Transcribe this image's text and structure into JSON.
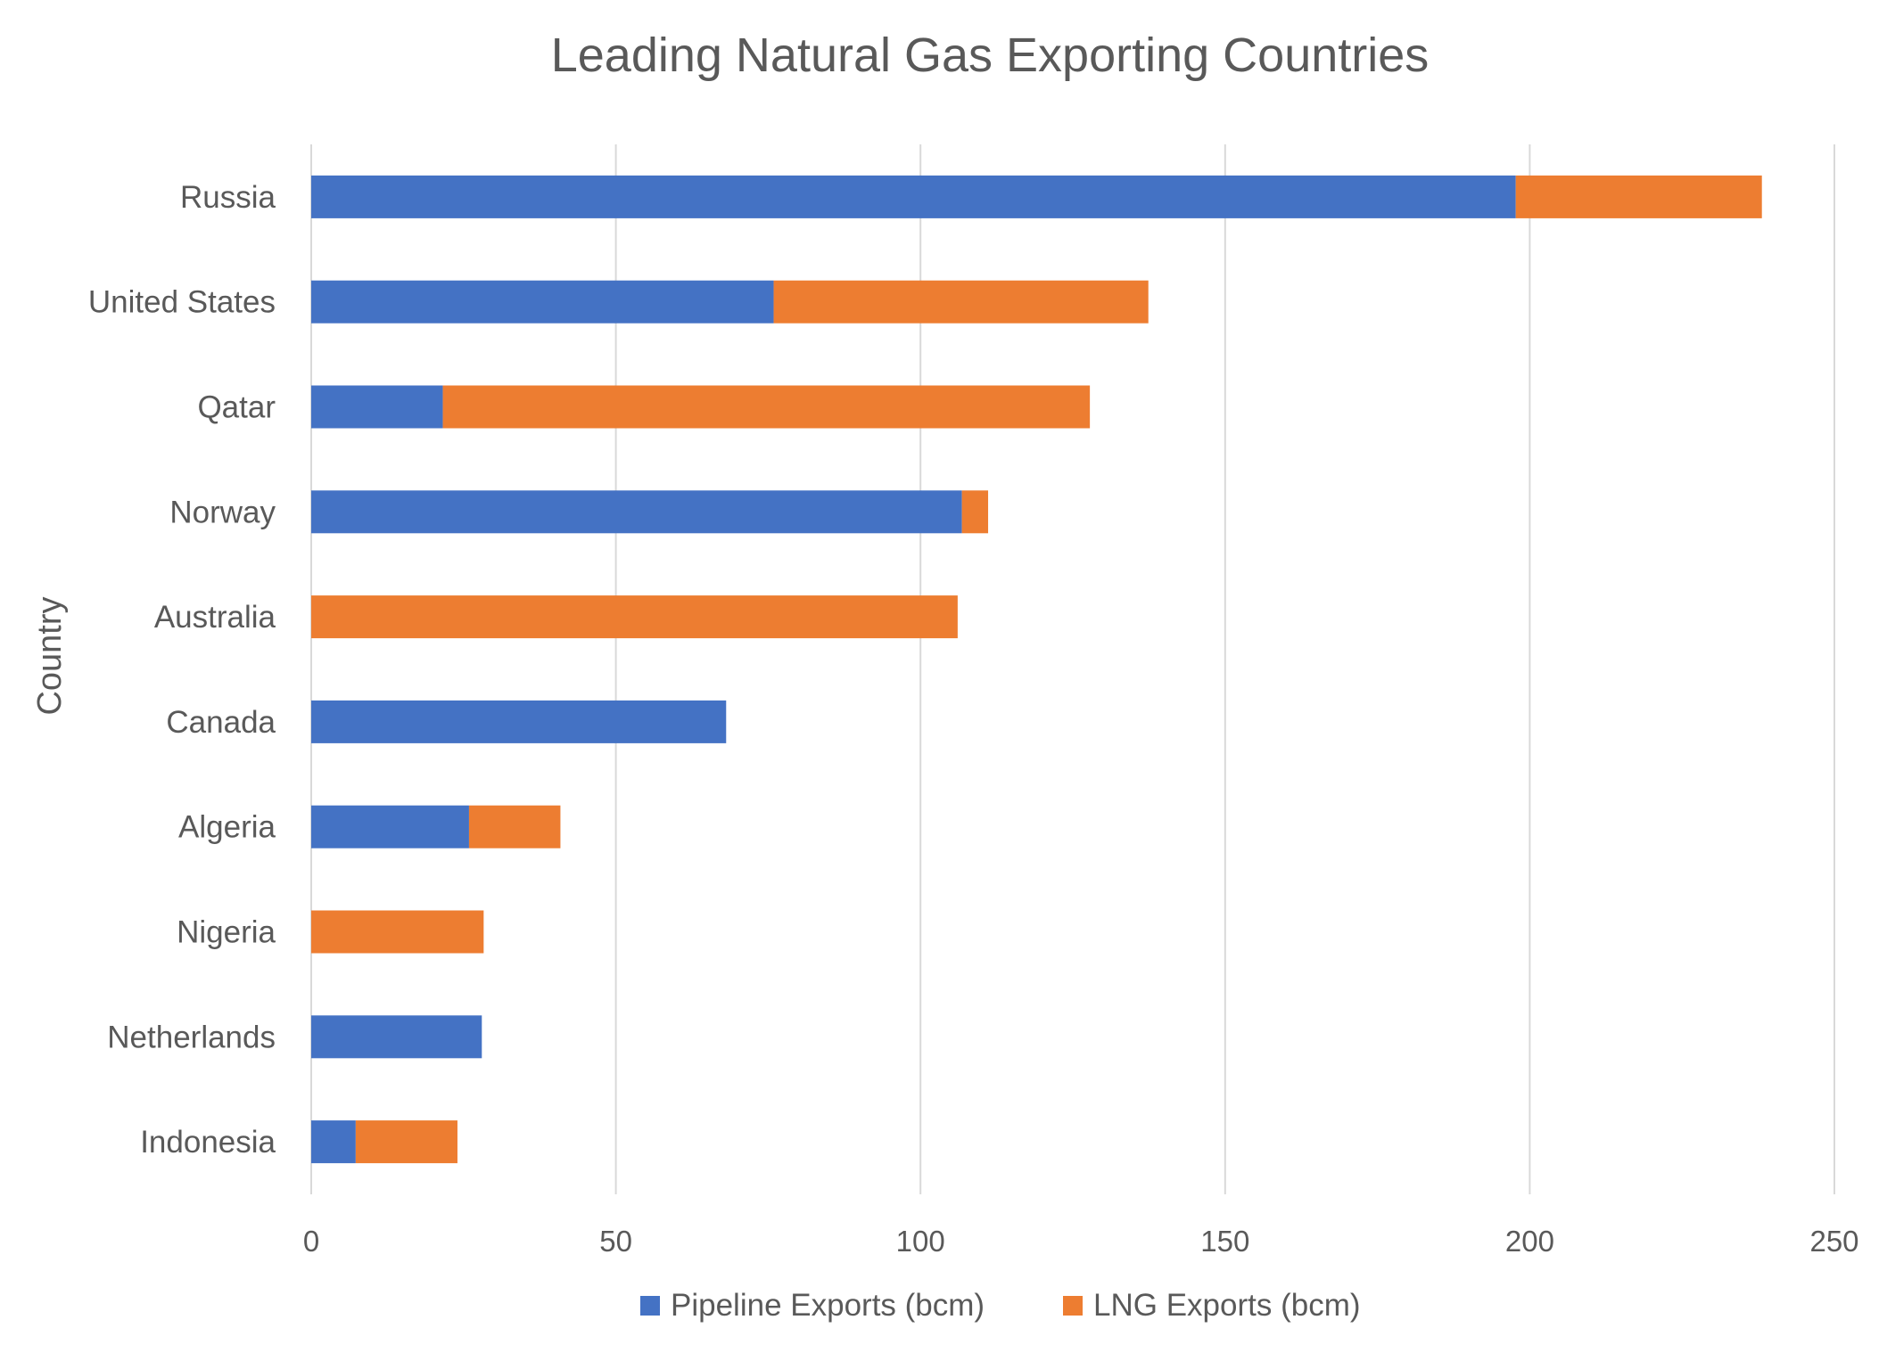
{
  "chart_data": {
    "type": "bar",
    "orientation": "horizontal",
    "stacked": true,
    "title": "Leading Natural Gas Exporting Countries",
    "xlabel": "",
    "ylabel": "Country",
    "xlim": [
      0,
      250
    ],
    "xticks": [
      0,
      50,
      100,
      150,
      200,
      250
    ],
    "grid": true,
    "legend_position": "bottom",
    "categories": [
      "Russia",
      "United States",
      "Qatar",
      "Norway",
      "Australia",
      "Canada",
      "Algeria",
      "Nigeria",
      "Netherlands",
      "Indonesia"
    ],
    "series": [
      {
        "name": "Pipeline Exports (bcm)",
        "color": "#4472c4",
        "values": [
          197.7,
          75.9,
          21.6,
          106.8,
          0,
          68.1,
          25.9,
          0,
          28.0,
          7.3
        ]
      },
      {
        "name": "LNG Exports (bcm)",
        "color": "#ed7d31",
        "values": [
          40.4,
          61.5,
          106.2,
          4.3,
          106.1,
          0,
          15.0,
          28.3,
          0,
          16.7
        ]
      }
    ]
  }
}
